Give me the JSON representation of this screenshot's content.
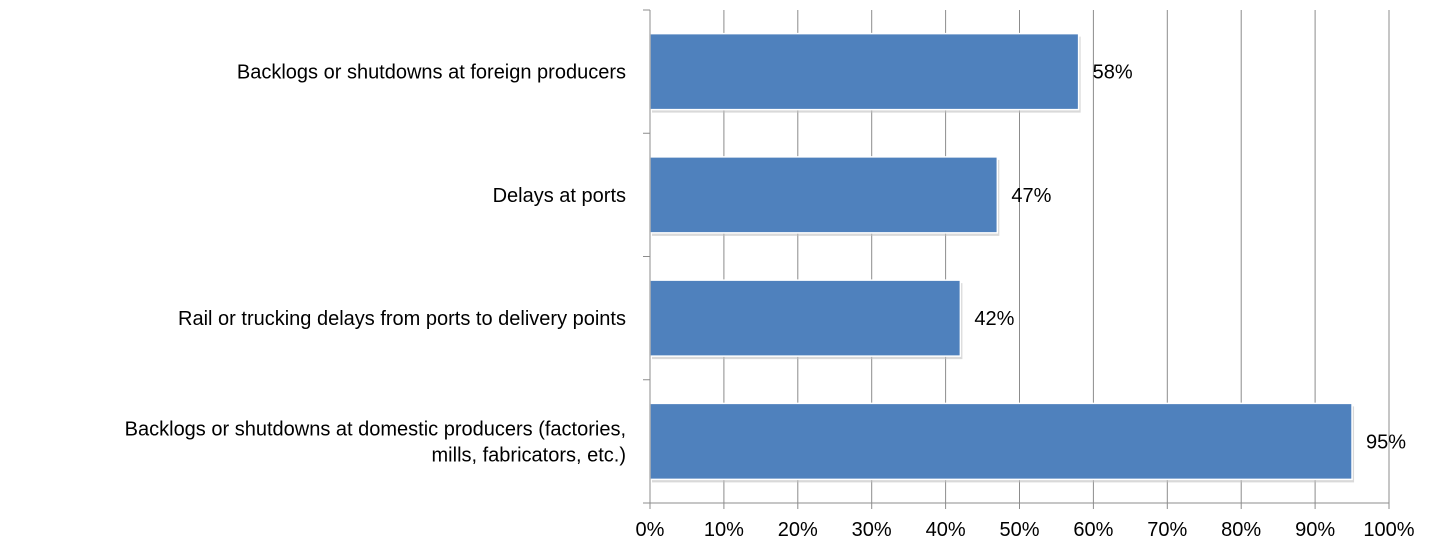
{
  "chart_data": {
    "type": "bar",
    "orientation": "horizontal",
    "categories": [
      [
        "Backlogs or shutdowns at foreign producers"
      ],
      [
        "Delays at ports"
      ],
      [
        "Rail or trucking delays from ports to delivery points"
      ],
      [
        "Backlogs or shutdowns at domestic producers (factories,",
        "mills, fabricators, etc.)"
      ]
    ],
    "values": [
      58,
      47,
      42,
      95
    ],
    "value_labels": [
      "58%",
      "47%",
      "42%",
      "95%"
    ],
    "xlim": [
      0,
      100
    ],
    "x_ticks": [
      0,
      10,
      20,
      30,
      40,
      50,
      60,
      70,
      80,
      90,
      100
    ],
    "x_tick_labels": [
      "0%",
      "10%",
      "20%",
      "30%",
      "40%",
      "50%",
      "60%",
      "70%",
      "80%",
      "90%",
      "100%"
    ],
    "title": "",
    "xlabel": "",
    "ylabel": "",
    "grid": "vertical",
    "legend": "none",
    "bar_color": "#4F81BD"
  }
}
